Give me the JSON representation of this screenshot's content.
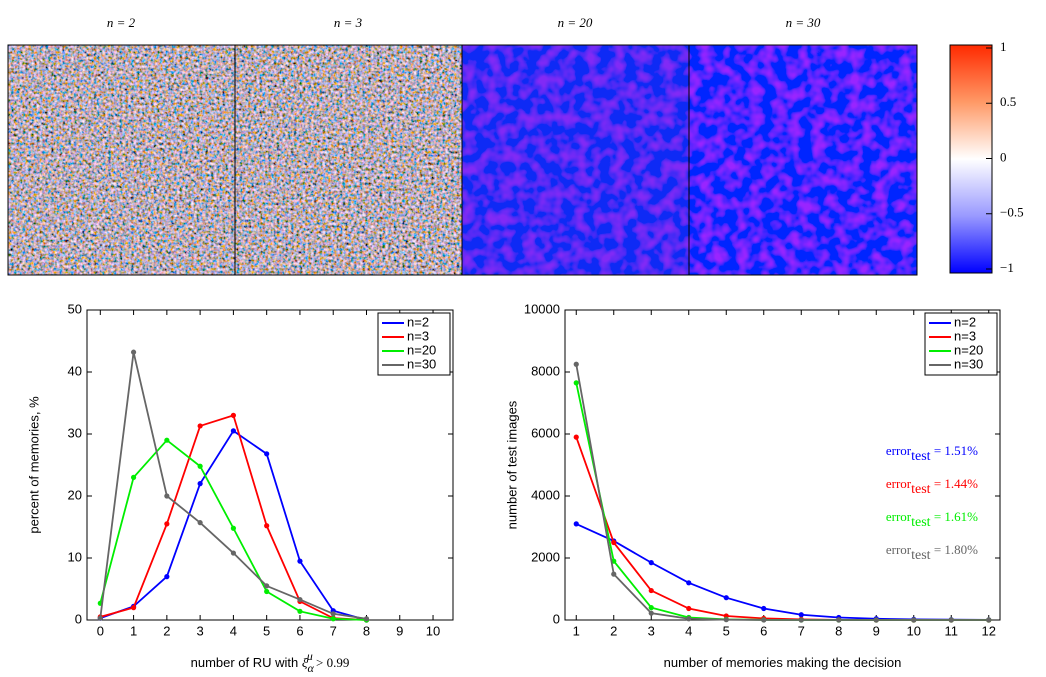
{
  "chart_data": [
    {
      "type": "colorbar",
      "titles": [
        "n = 2",
        "n = 3",
        "n = 20",
        "n = 30"
      ],
      "ylim": [
        -1,
        1
      ],
      "yticks": [
        1,
        0.5,
        0,
        {
          "value": -0.5,
          "label": "−0.5"
        },
        {
          "value": -1,
          "label": "−1"
        }
      ]
    },
    {
      "type": "line",
      "ylabel": "percent of memories, %",
      "xlabel": [
        "number of RU with ",
        "ξ",
        "α",
        "μ",
        " > 0.99"
      ],
      "x": [
        0,
        1,
        2,
        3,
        4,
        5,
        6,
        7,
        8
      ],
      "xlim": [
        -0.4,
        10.6
      ],
      "xticks": [
        0,
        1,
        2,
        3,
        4,
        5,
        6,
        7,
        8,
        9,
        10
      ],
      "ylim": [
        0,
        50
      ],
      "yticks": [
        0,
        10,
        20,
        30,
        40,
        50
      ],
      "legend": "upper right",
      "series": [
        {
          "name": "n=2",
          "color": "#0000ff",
          "values": [
            0.3,
            2.2,
            7,
            22,
            30.5,
            26.8,
            9.5,
            1.5,
            0
          ]
        },
        {
          "name": "n=3",
          "color": "#ff0000",
          "values": [
            0.5,
            2,
            15.5,
            31.3,
            33,
            15.2,
            3,
            0.3,
            0
          ]
        },
        {
          "name": "n=20",
          "color": "#00ee00",
          "values": [
            2.7,
            23,
            29,
            24.8,
            14.8,
            4.6,
            1.4,
            0.2,
            0
          ]
        },
        {
          "name": "n=30",
          "color": "#666666",
          "values": [
            0.3,
            43.2,
            20,
            15.7,
            10.8,
            5.5,
            3.3,
            1,
            0.2
          ]
        }
      ]
    },
    {
      "type": "line",
      "ylabel": "number of test images",
      "xlabel": [
        "number of memories making the decision"
      ],
      "x": [
        1,
        2,
        3,
        4,
        5,
        6,
        7,
        8,
        9,
        10,
        11,
        12
      ],
      "xlim": [
        0.7,
        12.3
      ],
      "xticks": [
        1,
        2,
        3,
        4,
        5,
        6,
        7,
        8,
        9,
        10,
        11,
        12
      ],
      "ylim": [
        0,
        10000
      ],
      "yticks": [
        0,
        2000,
        4000,
        6000,
        8000,
        10000
      ],
      "legend": "upper right",
      "series": [
        {
          "name": "n=2",
          "color": "#0000ff",
          "values": [
            3100,
            2550,
            1850,
            1200,
            720,
            370,
            170,
            80,
            40,
            20,
            10,
            5
          ]
        },
        {
          "name": "n=3",
          "color": "#ff0000",
          "values": [
            5900,
            2500,
            950,
            370,
            130,
            50,
            20,
            5,
            0,
            0,
            0,
            0
          ]
        },
        {
          "name": "n=20",
          "color": "#00ee00",
          "values": [
            7650,
            1900,
            400,
            80,
            20,
            5,
            0,
            0,
            0,
            0,
            0,
            0
          ]
        },
        {
          "name": "n=30",
          "color": "#666666",
          "values": [
            8250,
            1480,
            220,
            40,
            10,
            0,
            0,
            0,
            0,
            0,
            0,
            0
          ]
        }
      ],
      "annotations": [
        {
          "text": "error",
          "sub": "test",
          "rest": " = 1.51%",
          "color": "#0000ff"
        },
        {
          "text": "error",
          "sub": "test",
          "rest": " = 1.44%",
          "color": "#ff0000"
        },
        {
          "text": "error",
          "sub": "test",
          "rest": " = 1.61%",
          "color": "#00ee00"
        },
        {
          "text": "error",
          "sub": "test",
          "rest": " = 1.80%",
          "color": "#666666"
        }
      ]
    }
  ]
}
